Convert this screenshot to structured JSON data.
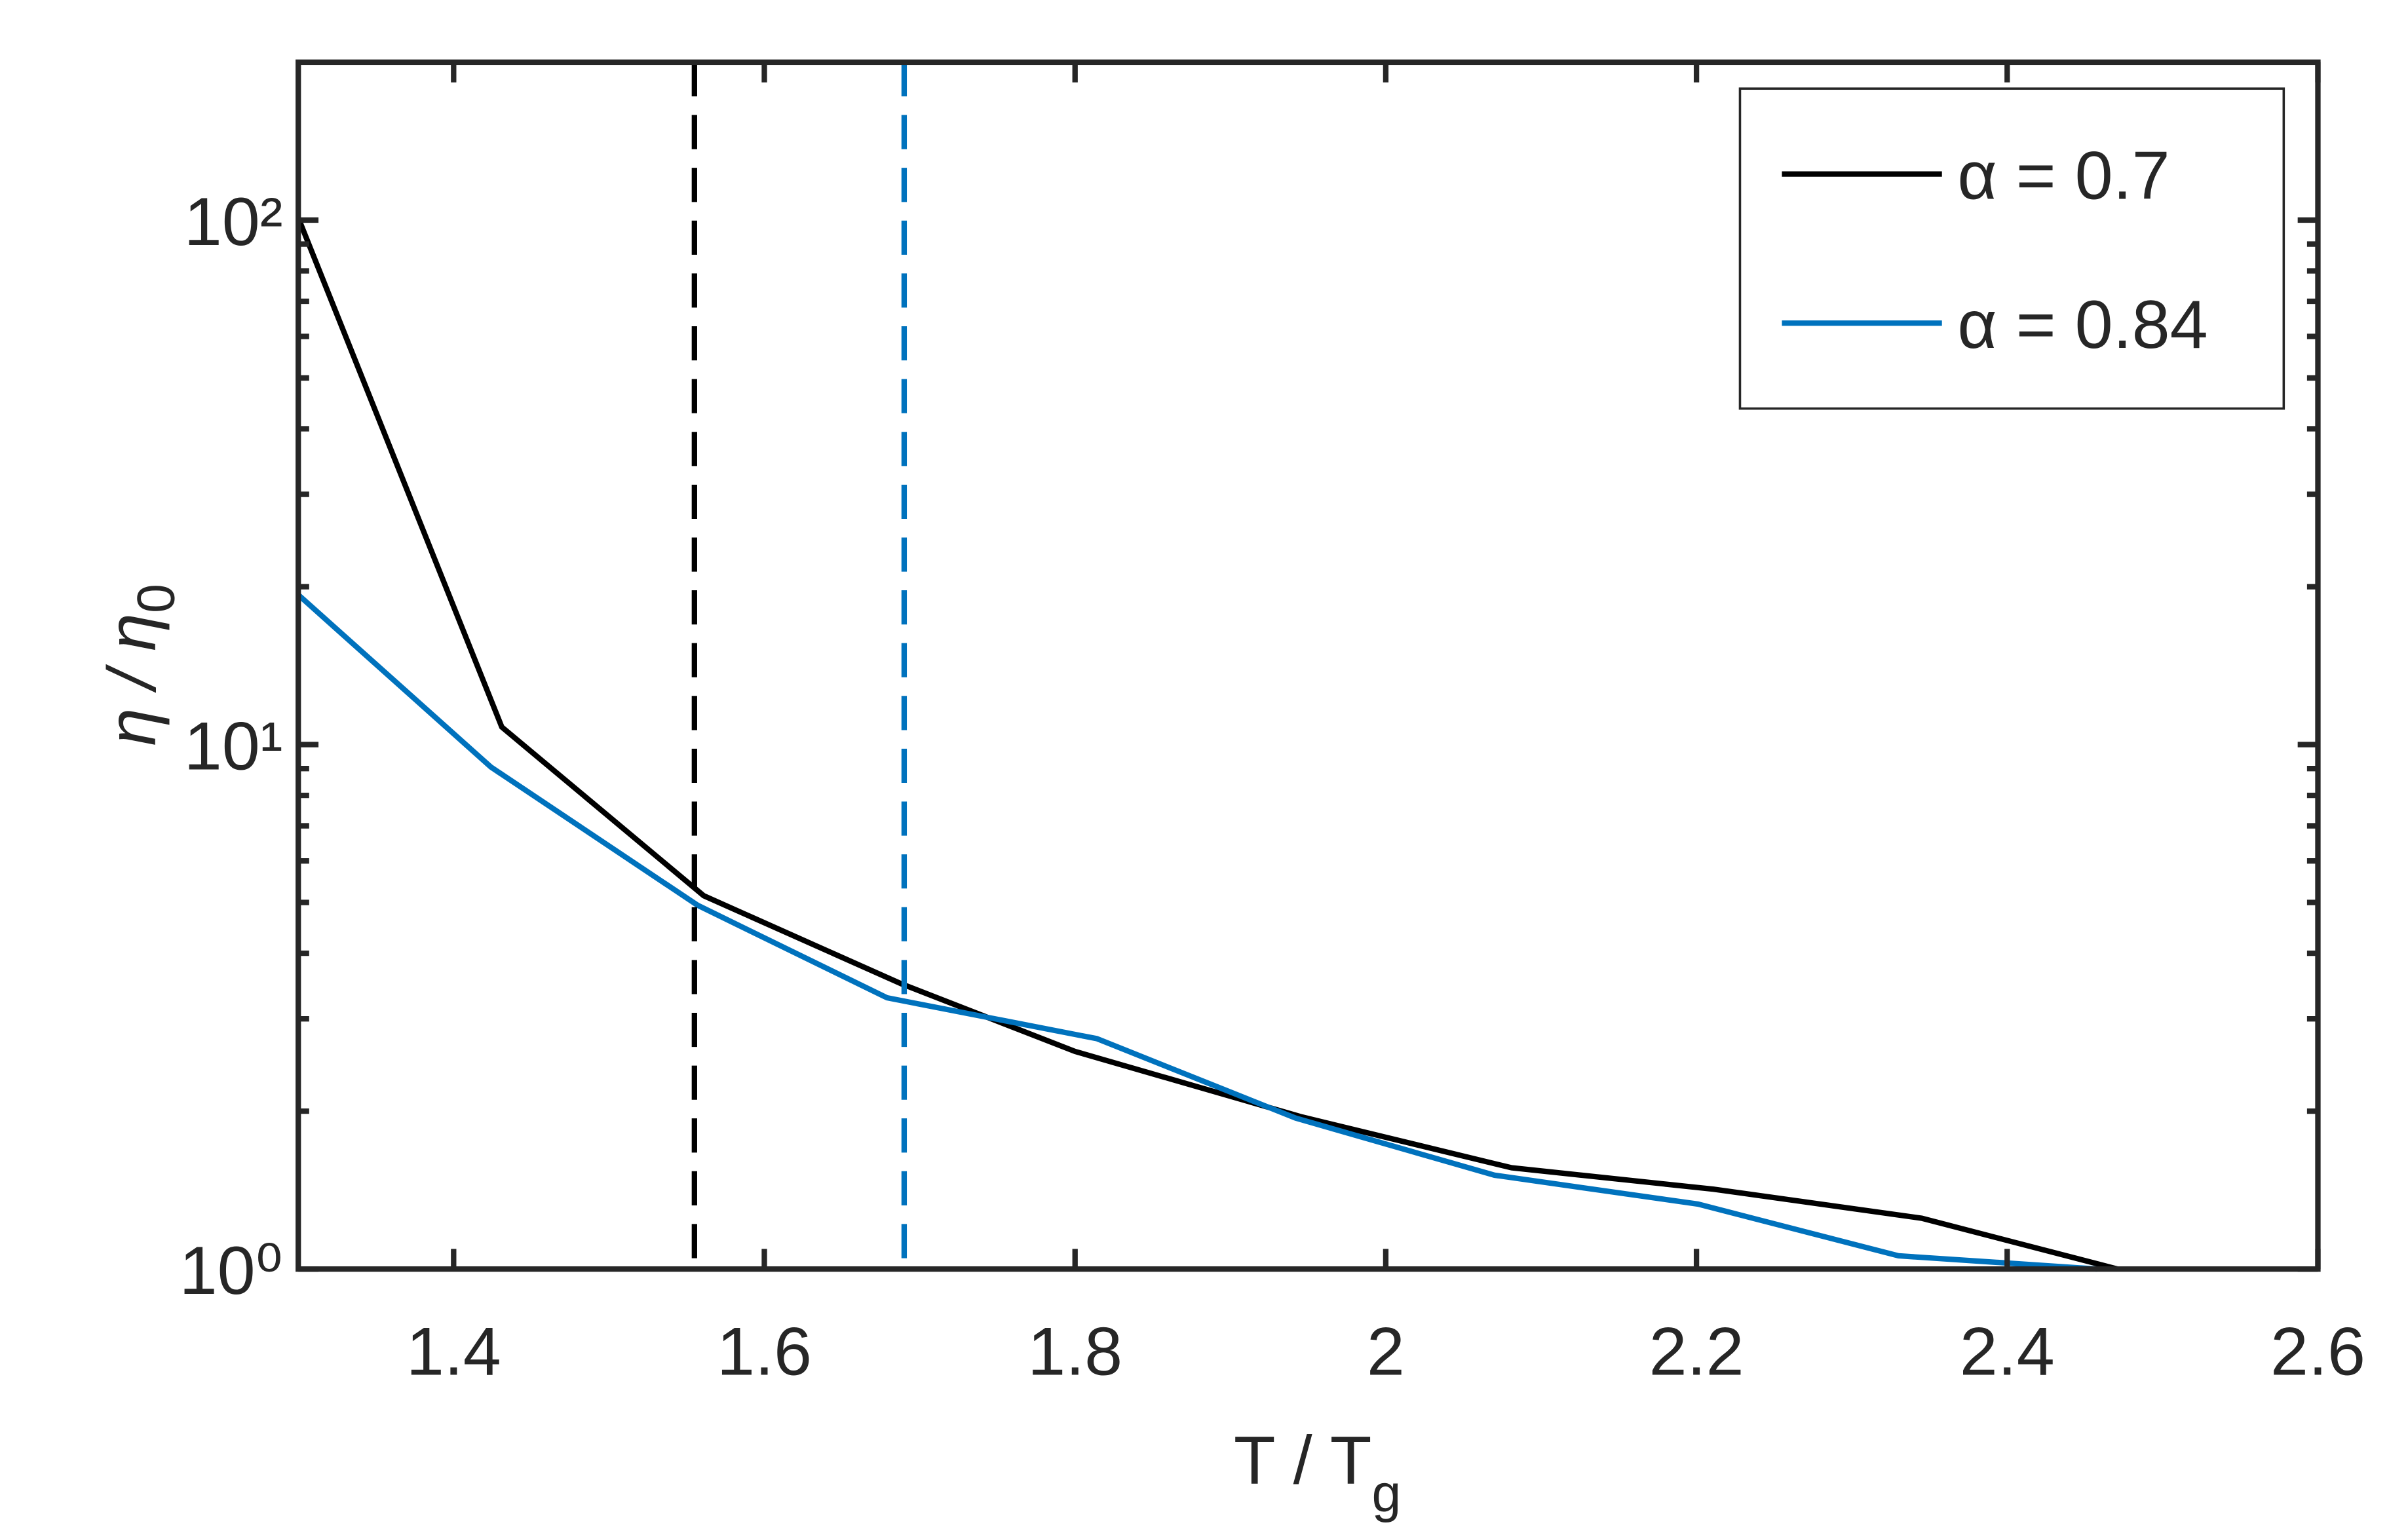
{
  "chart_data": {
    "type": "line",
    "xlabel": [
      "T / T",
      "g"
    ],
    "ylabel": [
      "η / η",
      "0"
    ],
    "x": [
      1.3,
      1.431,
      1.561,
      1.688,
      1.8,
      1.946,
      2.081,
      2.211,
      2.345,
      2.471
    ],
    "series": [
      {
        "name": "α = 0.7",
        "color": "#000000",
        "x": [
          1.3,
          1.431,
          1.561,
          1.688,
          1.8,
          1.946,
          2.081,
          2.211,
          2.345,
          2.471
        ],
        "values": [
          101,
          10.8,
          5.15,
          3.5,
          2.6,
          1.95,
          1.56,
          1.42,
          1.25,
          1.0
        ]
      },
      {
        "name": "α = 0.84",
        "color": "#0072bd",
        "x": [
          1.3,
          1.424,
          1.557,
          1.679,
          1.814,
          1.942,
          2.07,
          2.201,
          2.33,
          2.458
        ],
        "values": [
          19.3,
          9.06,
          4.94,
          3.29,
          2.75,
          1.94,
          1.51,
          1.33,
          1.06,
          1.0
        ]
      }
    ],
    "vlines": [
      {
        "x": 1.555,
        "color": "#000000"
      },
      {
        "x": 1.69,
        "color": "#0072bd"
      }
    ],
    "xlim": [
      1.3,
      2.6
    ],
    "xticks": [
      1.4,
      1.6,
      1.8,
      2,
      2.2,
      2.4,
      2.6
    ],
    "ylim": [
      1,
      200
    ],
    "log_y": true,
    "yticks": [
      {
        "value": 1,
        "label": "10⁰"
      },
      {
        "value": 10,
        "label": "10¹"
      },
      {
        "value": 100,
        "label": "10²"
      }
    ],
    "yminorticks": [
      2,
      3,
      4,
      5,
      6,
      7,
      8,
      9,
      20,
      30,
      40,
      50,
      60,
      70,
      80,
      90
    ],
    "legend": "upper right",
    "grid": false
  }
}
